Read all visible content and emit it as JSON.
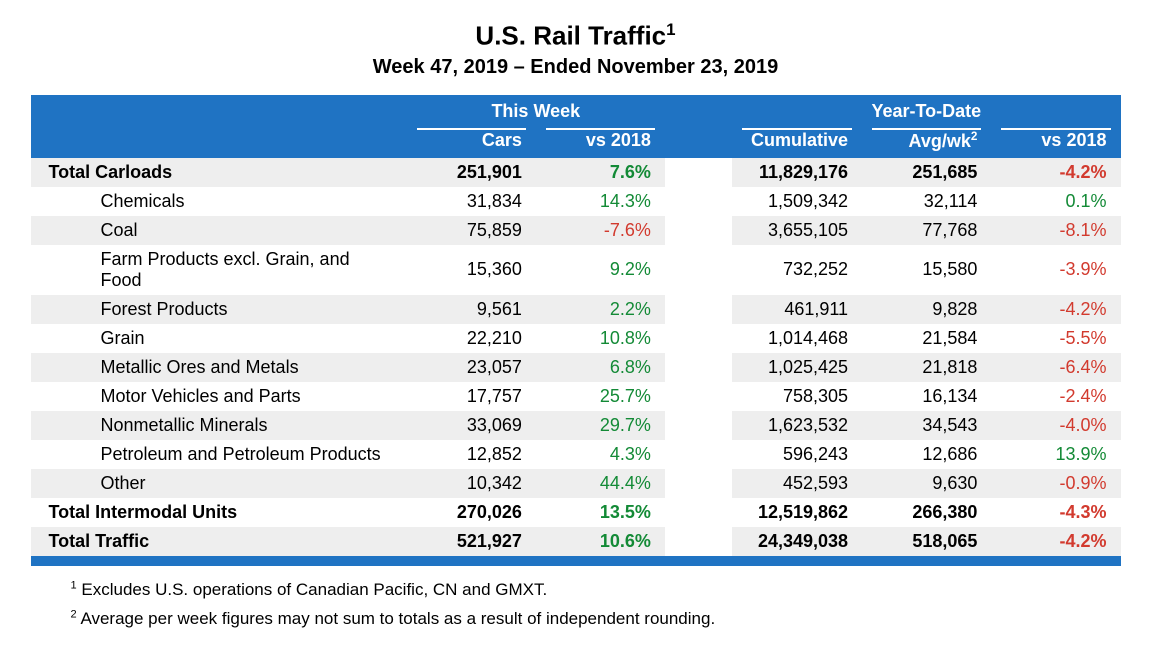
{
  "title": "U.S. Rail Traffic",
  "title_sup": "1",
  "subtitle": "Week 47, 2019 – Ended November 23, 2019",
  "header": {
    "group1": "This Week",
    "group2": "Year-To-Date",
    "cars": "Cars",
    "vs2018": "vs 2018",
    "cumulative": "Cumulative",
    "avgwk": "Avg/wk",
    "avgwk_sup": "2"
  },
  "colors": {
    "header_bg": "#1f73c3",
    "header_text": "#ffffff",
    "stripe": "#eeeeee",
    "positive": "#138a36",
    "negative": "#d23a2e",
    "text": "#000000"
  },
  "rows": [
    {
      "label": "Total Carloads",
      "bold": true,
      "indent": false,
      "cars": "251,901",
      "week_vs": "7.6%",
      "week_sign": "pos",
      "cum": "11,829,176",
      "avg": "251,685",
      "ytd_vs": "-4.2%",
      "ytd_sign": "neg"
    },
    {
      "label": "Chemicals",
      "bold": false,
      "indent": true,
      "cars": "31,834",
      "week_vs": "14.3%",
      "week_sign": "pos",
      "cum": "1,509,342",
      "avg": "32,114",
      "ytd_vs": "0.1%",
      "ytd_sign": "pos"
    },
    {
      "label": "Coal",
      "bold": false,
      "indent": true,
      "cars": "75,859",
      "week_vs": "-7.6%",
      "week_sign": "neg",
      "cum": "3,655,105",
      "avg": "77,768",
      "ytd_vs": "-8.1%",
      "ytd_sign": "neg"
    },
    {
      "label": "Farm Products excl. Grain, and Food",
      "bold": false,
      "indent": true,
      "cars": "15,360",
      "week_vs": "9.2%",
      "week_sign": "pos",
      "cum": "732,252",
      "avg": "15,580",
      "ytd_vs": "-3.9%",
      "ytd_sign": "neg"
    },
    {
      "label": "Forest Products",
      "bold": false,
      "indent": true,
      "cars": "9,561",
      "week_vs": "2.2%",
      "week_sign": "pos",
      "cum": "461,911",
      "avg": "9,828",
      "ytd_vs": "-4.2%",
      "ytd_sign": "neg"
    },
    {
      "label": "Grain",
      "bold": false,
      "indent": true,
      "cars": "22,210",
      "week_vs": "10.8%",
      "week_sign": "pos",
      "cum": "1,014,468",
      "avg": "21,584",
      "ytd_vs": "-5.5%",
      "ytd_sign": "neg"
    },
    {
      "label": "Metallic Ores and Metals",
      "bold": false,
      "indent": true,
      "cars": "23,057",
      "week_vs": "6.8%",
      "week_sign": "pos",
      "cum": "1,025,425",
      "avg": "21,818",
      "ytd_vs": "-6.4%",
      "ytd_sign": "neg"
    },
    {
      "label": "Motor Vehicles and Parts",
      "bold": false,
      "indent": true,
      "cars": "17,757",
      "week_vs": "25.7%",
      "week_sign": "pos",
      "cum": "758,305",
      "avg": "16,134",
      "ytd_vs": "-2.4%",
      "ytd_sign": "neg"
    },
    {
      "label": "Nonmetallic Minerals",
      "bold": false,
      "indent": true,
      "cars": "33,069",
      "week_vs": "29.7%",
      "week_sign": "pos",
      "cum": "1,623,532",
      "avg": "34,543",
      "ytd_vs": "-4.0%",
      "ytd_sign": "neg"
    },
    {
      "label": "Petroleum and Petroleum Products",
      "bold": false,
      "indent": true,
      "cars": "12,852",
      "week_vs": "4.3%",
      "week_sign": "pos",
      "cum": "596,243",
      "avg": "12,686",
      "ytd_vs": "13.9%",
      "ytd_sign": "pos"
    },
    {
      "label": "Other",
      "bold": false,
      "indent": true,
      "cars": "10,342",
      "week_vs": "44.4%",
      "week_sign": "pos",
      "cum": "452,593",
      "avg": "9,630",
      "ytd_vs": "-0.9%",
      "ytd_sign": "neg"
    },
    {
      "label": "Total Intermodal Units",
      "bold": true,
      "indent": false,
      "cars": "270,026",
      "week_vs": "13.5%",
      "week_sign": "pos",
      "cum": "12,519,862",
      "avg": "266,380",
      "ytd_vs": "-4.3%",
      "ytd_sign": "neg"
    },
    {
      "label": "Total Traffic",
      "bold": true,
      "indent": false,
      "cars": "521,927",
      "week_vs": "10.6%",
      "week_sign": "pos",
      "cum": "24,349,038",
      "avg": "518,065",
      "ytd_vs": "-4.2%",
      "ytd_sign": "neg"
    }
  ],
  "footnotes": {
    "f1_sup": "1",
    "f1": " Excludes U.S. operations of Canadian Pacific, CN and GMXT.",
    "f2_sup": "2",
    "f2": " Average per week figures may not sum to totals as a result of independent rounding."
  }
}
